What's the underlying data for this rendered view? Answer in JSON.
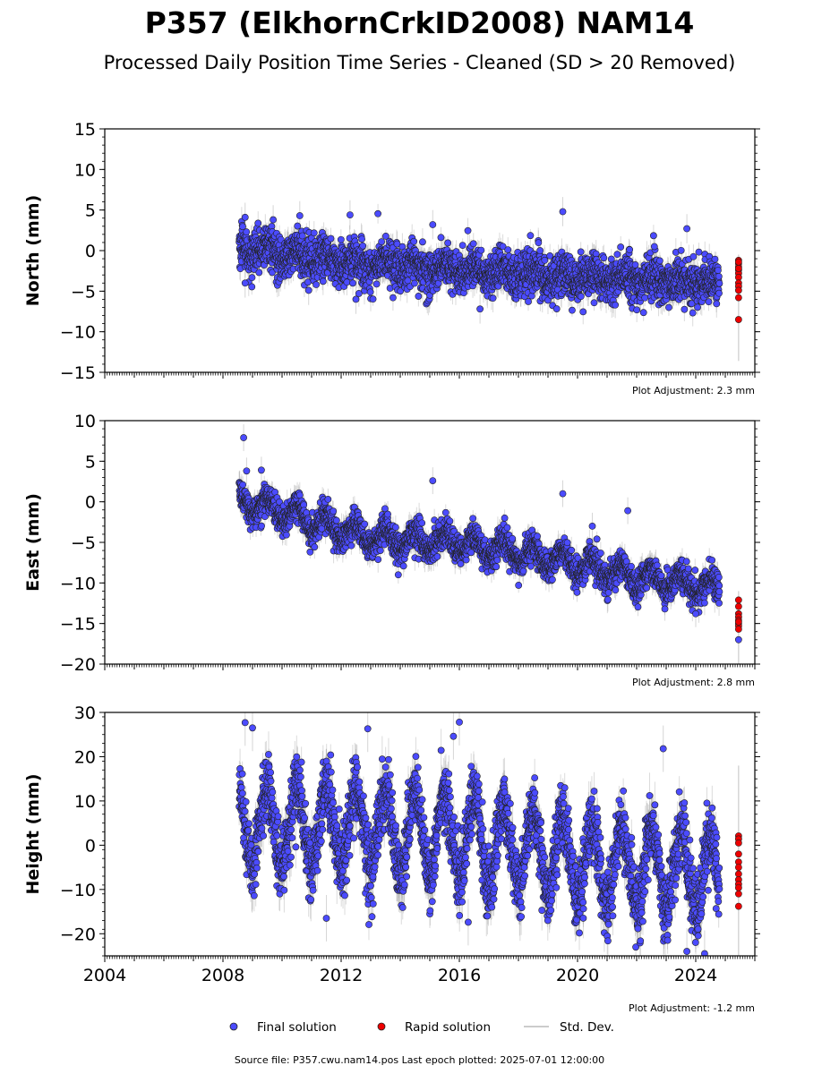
{
  "title": "P357 (ElkhornCrkID2008) NAM14",
  "subtitle": "Processed Daily Position Time Series - Cleaned (SD > 20 Removed)",
  "legend": {
    "final": "Final solution",
    "rapid": "Rapid solution",
    "std": "Std. Dev."
  },
  "footer": "Source file: P357.cwu.nam14.pos  Last epoch plotted: 2025-07-01 12:00:00",
  "colors": {
    "final": "#4b4bff",
    "rapid": "#ee0000",
    "std": "#999999",
    "outline": "#222222"
  },
  "chart_data": [
    {
      "type": "scatter",
      "ylabel": "North (mm)",
      "ylim": [
        -15,
        15
      ],
      "yticks": [
        -15,
        -10,
        -5,
        0,
        5,
        10,
        15
      ],
      "ytick_labels": [
        "−15",
        "−10",
        "−5",
        "0",
        "5",
        "10",
        "15"
      ],
      "xlim": [
        2004,
        2026
      ],
      "adjustment": "Plot Adjustment: 2.3 mm",
      "final_start": 2008.55,
      "final_end": 2024.8,
      "trend": [
        [
          2008.55,
          0.2
        ],
        [
          2012,
          -1.3
        ],
        [
          2016,
          -2.3
        ],
        [
          2020,
          -3.3
        ],
        [
          2024.8,
          -3.9
        ]
      ],
      "annual_amplitude": 0.6,
      "scatter": 1.3,
      "sd_typical": 1.2,
      "outliers": [
        [
          2008.75,
          4.1
        ],
        [
          2009.7,
          3.8
        ],
        [
          2010.6,
          4.3
        ],
        [
          2012.3,
          4.4
        ],
        [
          2015.1,
          3.2
        ],
        [
          2019.5,
          4.8
        ],
        [
          2022.6,
          0.5
        ],
        [
          2023.7,
          2.7
        ],
        [
          2016.7,
          -7.2
        ],
        [
          2012.5,
          -6.0
        ],
        [
          2010.9,
          -4.9
        ],
        [
          2008.75,
          -4.0
        ]
      ],
      "rapid": {
        "x": 2025.45,
        "values": [
          -1.2,
          -1.6,
          -2.0,
          -2.4,
          -2.8,
          -3.3,
          -4.0,
          -4.4,
          -4.9,
          -5.8,
          -8.5,
          -1.4,
          -2.2
        ],
        "sd_low": -13.6,
        "sd_high": -0.5
      }
    },
    {
      "type": "scatter",
      "ylabel": "East (mm)",
      "ylim": [
        -20,
        10
      ],
      "yticks": [
        -20,
        -15,
        -10,
        -5,
        0,
        5,
        10
      ],
      "ytick_labels": [
        "−20",
        "−15",
        "−10",
        "−5",
        "0",
        "5",
        "10"
      ],
      "xlim": [
        2004,
        2026
      ],
      "adjustment": "Plot Adjustment: 2.8 mm",
      "final_start": 2008.55,
      "final_end": 2024.8,
      "trend": [
        [
          2008.55,
          0.3
        ],
        [
          2010,
          -1.2
        ],
        [
          2012,
          -3.5
        ],
        [
          2013,
          -4.6
        ],
        [
          2016,
          -5.0
        ],
        [
          2018,
          -6.3
        ],
        [
          2020,
          -7.8
        ],
        [
          2022,
          -9.3
        ],
        [
          2024.8,
          -10.7
        ]
      ],
      "annual_amplitude": 1.2,
      "scatter": 0.9,
      "sd_typical": 1.1,
      "outliers": [
        [
          2008.7,
          7.9
        ],
        [
          2008.8,
          3.8
        ],
        [
          2009.3,
          3.9
        ],
        [
          2015.1,
          2.6
        ],
        [
          2019.5,
          1.0
        ],
        [
          2021.7,
          -1.1
        ],
        [
          2020.5,
          -3.0
        ],
        [
          2024.0,
          -13.8
        ]
      ],
      "rapid": {
        "x": 2025.45,
        "values": [
          -12.1,
          -12.9,
          -13.8,
          -14.2,
          -14.6,
          -15.0,
          -15.3,
          -15.7,
          -14.8,
          -17.0
        ],
        "sd_low": -20.0,
        "sd_high": -11.0
      }
    },
    {
      "type": "scatter",
      "ylabel": "Height (mm)",
      "ylim": [
        -25,
        30
      ],
      "yticks": [
        -20,
        -10,
        0,
        10,
        20,
        30
      ],
      "ytick_labels": [
        "−20",
        "−10",
        "0",
        "10",
        "20",
        "30"
      ],
      "xlim": [
        2004,
        2026
      ],
      "xticks": [
        2004,
        2008,
        2012,
        2016,
        2020,
        2024
      ],
      "xtick_labels": [
        "2004",
        "2008",
        "2012",
        "2016",
        "2020",
        "2024"
      ],
      "adjustment": "Plot Adjustment: -1.2 mm",
      "final_start": 2008.55,
      "final_end": 2024.8,
      "trend": [
        [
          2008.55,
          4.5
        ],
        [
          2012,
          4.0
        ],
        [
          2016,
          2.0
        ],
        [
          2020,
          -3.5
        ],
        [
          2024.8,
          -7.0
        ]
      ],
      "annual_amplitude": 9.0,
      "scatter": 3.8,
      "sd_typical": 3.5,
      "outliers": [
        [
          2008.75,
          27.7
        ],
        [
          2009.0,
          26.5
        ],
        [
          2012.9,
          26.3
        ],
        [
          2016.0,
          27.8
        ],
        [
          2015.8,
          24.6
        ],
        [
          2022.9,
          21.8
        ],
        [
          2023.7,
          -24.0
        ],
        [
          2024.3,
          -24.5
        ],
        [
          2011.5,
          -16.5
        ],
        [
          2016.3,
          -17.4
        ]
      ],
      "rapid": {
        "x": 2025.45,
        "values": [
          2.1,
          1.4,
          0.5,
          -2.0,
          -3.8,
          -5.0,
          -6.5,
          -7.8,
          -8.8,
          -9.6,
          -11.0,
          -13.8
        ],
        "sd_low": -25.0,
        "sd_high": 18.0
      }
    }
  ]
}
